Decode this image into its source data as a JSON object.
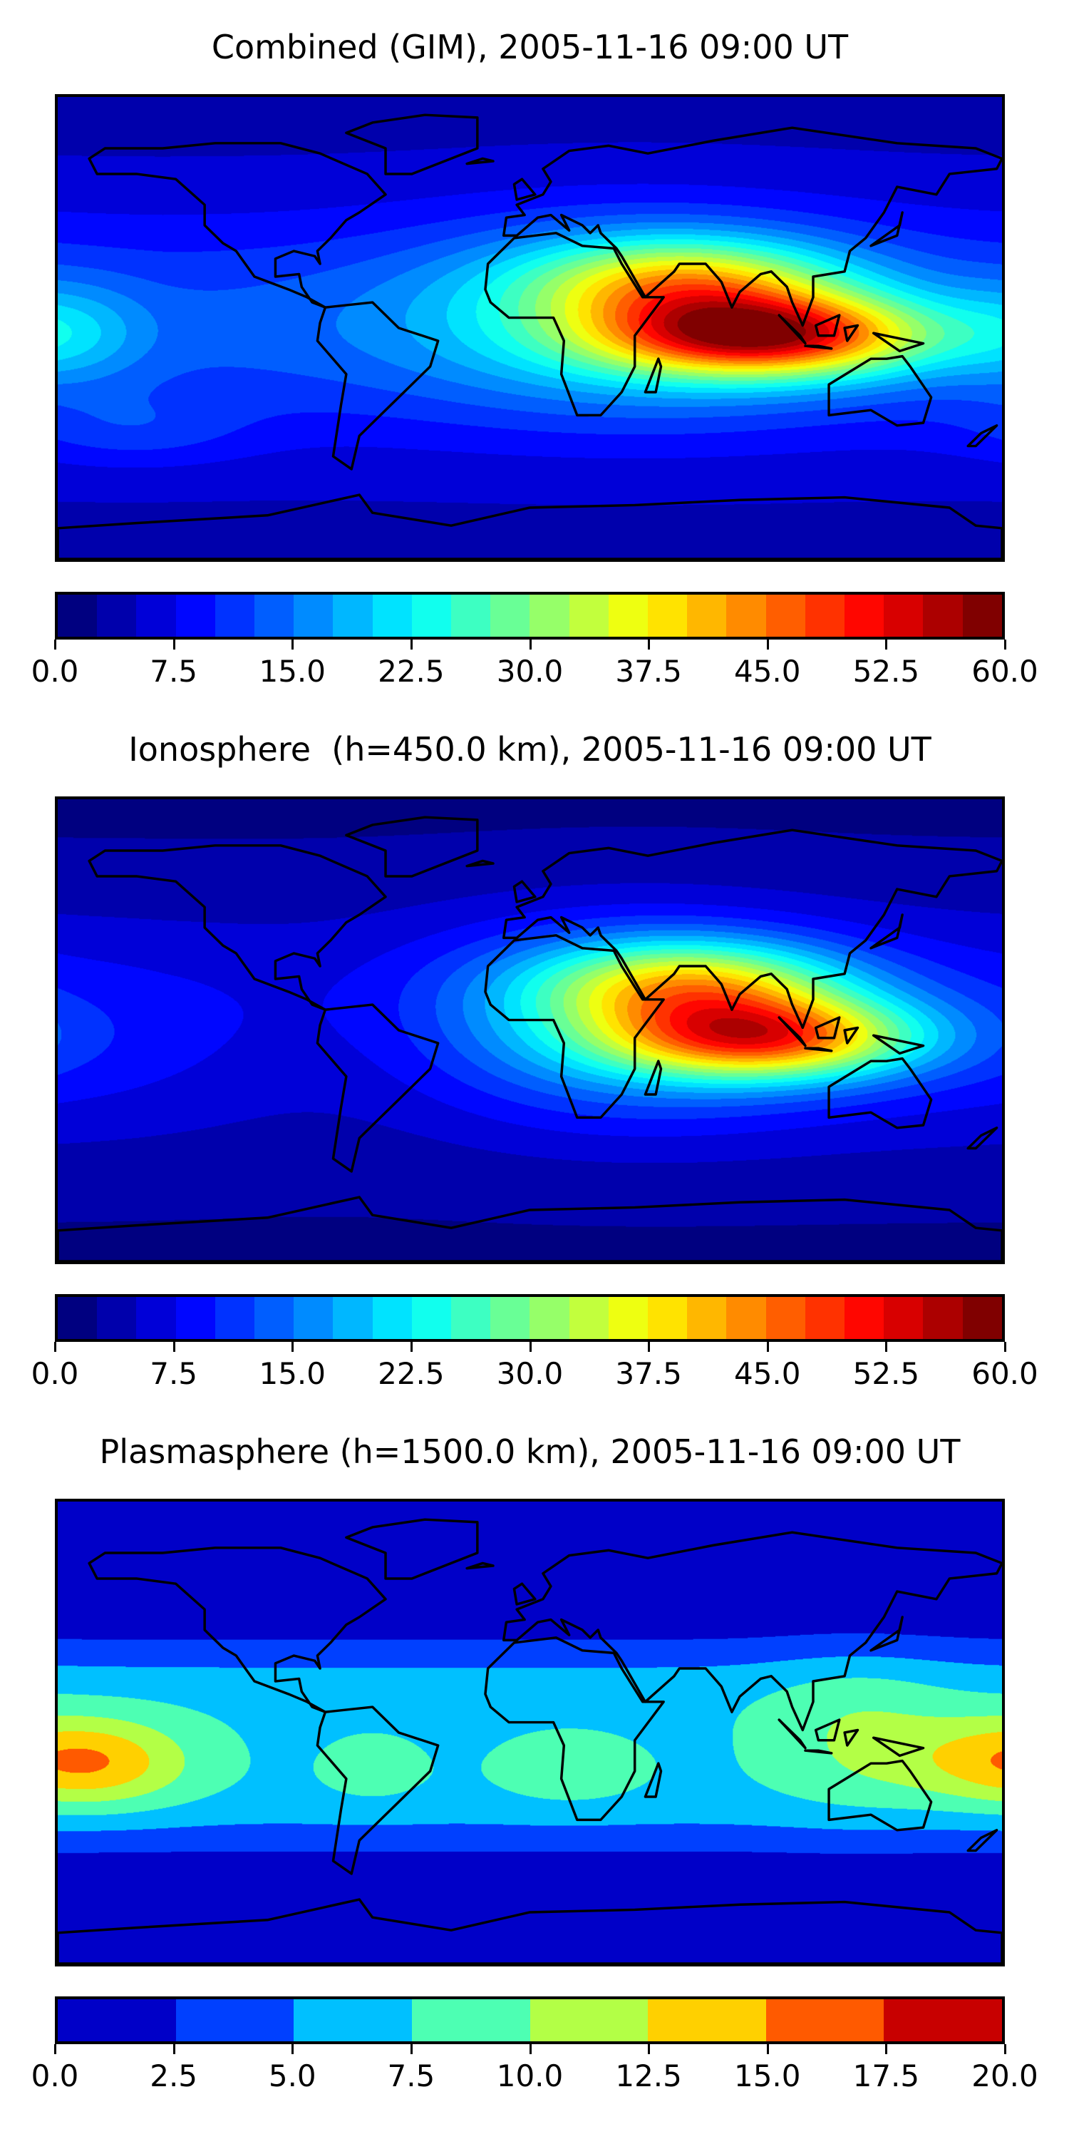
{
  "panels": [
    {
      "title": "Combined (GIM), 2005-11-16 09:00 UT",
      "colorbar": {
        "colormap": "jet",
        "vmin": 0,
        "vmax": 60,
        "levels": 24,
        "ticks": [
          "0.0",
          "7.5",
          "15.0",
          "22.5",
          "30.0",
          "37.5",
          "45.0",
          "52.5",
          "60.0"
        ]
      }
    },
    {
      "title": "Ionosphere  (h=450.0 km), 2005-11-16 09:00 UT",
      "colorbar": {
        "colormap": "jet",
        "vmin": 0,
        "vmax": 60,
        "levels": 24,
        "ticks": [
          "0.0",
          "7.5",
          "15.0",
          "22.5",
          "30.0",
          "37.5",
          "45.0",
          "52.5",
          "60.0"
        ]
      }
    },
    {
      "title": "Plasmasphere (h=1500.0 km), 2005-11-16 09:00 UT",
      "colorbar": {
        "colormap": "jet",
        "vmin": 0,
        "vmax": 20,
        "levels": 8,
        "colors": [
          "#0000c8",
          "#0040ff",
          "#00c0ff",
          "#4dffb3",
          "#b3ff46",
          "#ffd000",
          "#ff5a00",
          "#c80000"
        ],
        "ticks": [
          "0.0",
          "2.5",
          "5.0",
          "7.5",
          "10.0",
          "12.5",
          "15.0",
          "17.5",
          "20.0"
        ]
      }
    }
  ]
}
